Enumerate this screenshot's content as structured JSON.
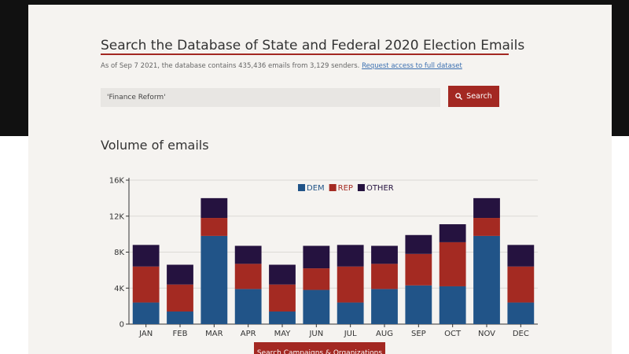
{
  "header": {
    "title": "Search the Database of State and Federal 2020 Election Emails",
    "stats_text": "As of Sep 7 2021, the database contains 435,436 emails from 3,129 senders.",
    "request_link": "Request access to full dataset"
  },
  "search": {
    "value": "'Finance Reform'",
    "button_label": "Search",
    "icon": "search-icon"
  },
  "volume_section": {
    "title": "Volume of emails"
  },
  "bottom_button": {
    "label": "Search Campaigns & Organizations"
  },
  "colors": {
    "accent": "#a32822",
    "dem": "#215488",
    "rep": "#a42a22",
    "other": "#25123f"
  },
  "chart_data": {
    "type": "bar",
    "stacked": true,
    "categories": [
      "JAN",
      "FEB",
      "MAR",
      "APR",
      "MAY",
      "JUN",
      "JUL",
      "AUG",
      "SEP",
      "OCT",
      "NOV",
      "DEC"
    ],
    "series": [
      {
        "name": "DEM",
        "color": "#215488",
        "values": [
          2400,
          1400,
          9800,
          3900,
          1400,
          3800,
          2400,
          3900,
          4300,
          4200,
          9800,
          2400
        ]
      },
      {
        "name": "REP",
        "color": "#a42a22",
        "values": [
          4000,
          3000,
          2000,
          2800,
          3000,
          2400,
          4000,
          2800,
          3500,
          4900,
          2000,
          4000
        ]
      },
      {
        "name": "OTHER",
        "color": "#25123f",
        "values": [
          2400,
          2200,
          2200,
          2000,
          2200,
          2500,
          2400,
          2000,
          2100,
          2000,
          2200,
          2400
        ]
      }
    ],
    "yticks": [
      0,
      4000,
      8000,
      12000,
      16000
    ],
    "ytick_labels": [
      "0",
      "4K",
      "8K",
      "12K",
      "16K"
    ],
    "ylim": [
      0,
      16000
    ],
    "grid": true,
    "legend_position": "top-center"
  }
}
